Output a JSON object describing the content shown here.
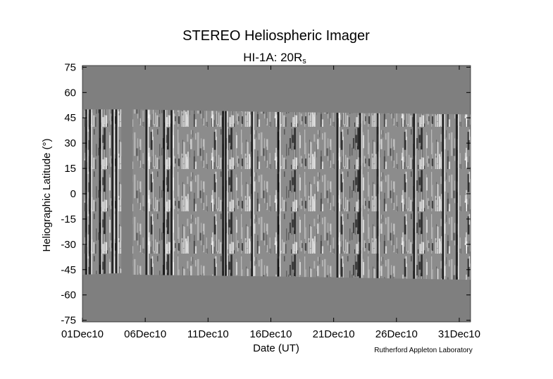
{
  "chart_data": {
    "type": "heatmap",
    "title": "STEREO Heliospheric Imager",
    "subtitle_main": "HI-1A: 20R",
    "subtitle_sub": "s",
    "xlabel": "Date (UT)",
    "ylabel": "Heliographic Latitude (°)",
    "credit": "Rutherford Appleton Laboratory",
    "x_tick_labels": [
      "01Dec10",
      "06Dec10",
      "11Dec10",
      "16Dec10",
      "21Dec10",
      "26Dec10",
      "31Dec10"
    ],
    "x_tick_days": [
      0,
      5,
      10,
      15,
      20,
      25,
      30
    ],
    "xlim_days": [
      0,
      30.9
    ],
    "y_ticks": [
      75,
      60,
      45,
      30,
      15,
      0,
      -15,
      -30,
      -45,
      -60,
      -75
    ],
    "ylim": [
      -76,
      76
    ],
    "data_gap_days": [
      3.1,
      4.0
    ],
    "latitude_coverage": [
      {
        "day": 0,
        "top": 50,
        "bottom": -48
      },
      {
        "day": 3.1,
        "top": 50,
        "bottom": -47
      },
      {
        "day": 4.0,
        "top": 50,
        "bottom": -48
      },
      {
        "day": 15,
        "top": 48.5,
        "bottom": -49
      },
      {
        "day": 30.9,
        "top": 47,
        "bottom": -51
      }
    ],
    "colors": {
      "background_gray": "#7f7f7f",
      "axis": "#000000"
    }
  }
}
